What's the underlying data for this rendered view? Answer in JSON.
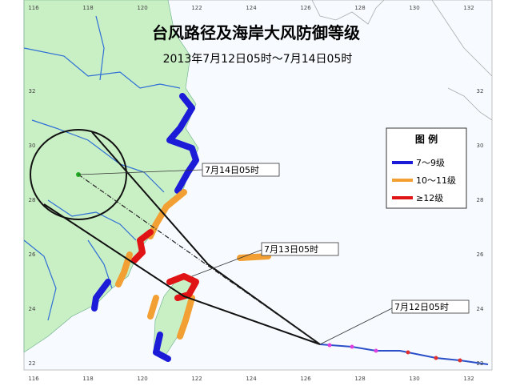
{
  "title": "台风路径及海岸大风防御等级",
  "subtitle": "2013年7月12日05时～7月14日05时",
  "legend": {
    "title": "图 例",
    "items": [
      {
        "label": "7～9级",
        "color": "#1c1cd8"
      },
      {
        "label": "10～11级",
        "color": "#f2a033"
      },
      {
        "label": "≥12级",
        "color": "#e01414"
      }
    ]
  },
  "track_labels": [
    "7月14日05时",
    "7月13日05时",
    "7月12日05时"
  ],
  "lon_ticks": [
    116,
    118,
    120,
    122,
    124,
    126,
    128,
    130,
    132
  ],
  "lat_ticks": [
    32,
    30,
    28,
    26,
    24,
    22
  ]
}
